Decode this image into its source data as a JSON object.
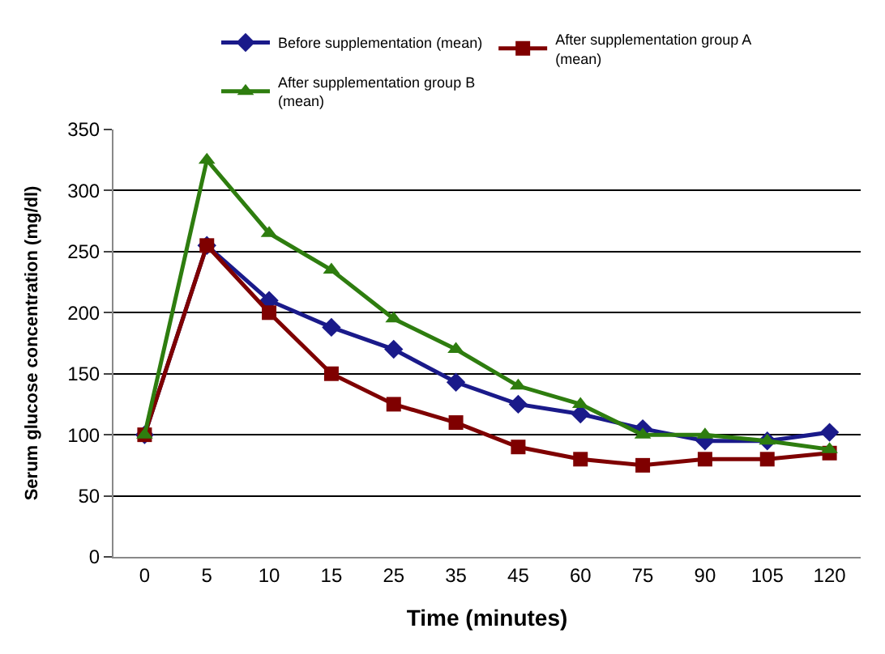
{
  "chart_data": {
    "type": "line",
    "xlabel": "Time (minutes)",
    "ylabel": "Serum glucose concentration (mg/dl)",
    "categories": [
      "0",
      "5",
      "10",
      "15",
      "25",
      "35",
      "45",
      "60",
      "75",
      "90",
      "105",
      "120"
    ],
    "series": [
      {
        "name": "Before supplementation (mean)",
        "color": "#1a1a8a",
        "marker": "diamond",
        "values": [
          100,
          255,
          210,
          188,
          170,
          143,
          125,
          117,
          105,
          95,
          95,
          102
        ]
      },
      {
        "name": "After supplementation group A\n(mean)",
        "color": "#7f0000",
        "marker": "square",
        "values": [
          100,
          255,
          200,
          150,
          125,
          110,
          90,
          80,
          75,
          80,
          80,
          85
        ]
      },
      {
        "name": "After supplementation group B\n(mean)",
        "color": "#2e7d0f",
        "marker": "triangle",
        "values": [
          100,
          325,
          265,
          235,
          195,
          170,
          140,
          125,
          100,
          100,
          95,
          88
        ]
      }
    ],
    "ylim": [
      0,
      350
    ],
    "yticks": [
      0,
      50,
      100,
      150,
      200,
      250,
      300,
      350
    ],
    "grid": "y",
    "legend": "top"
  }
}
